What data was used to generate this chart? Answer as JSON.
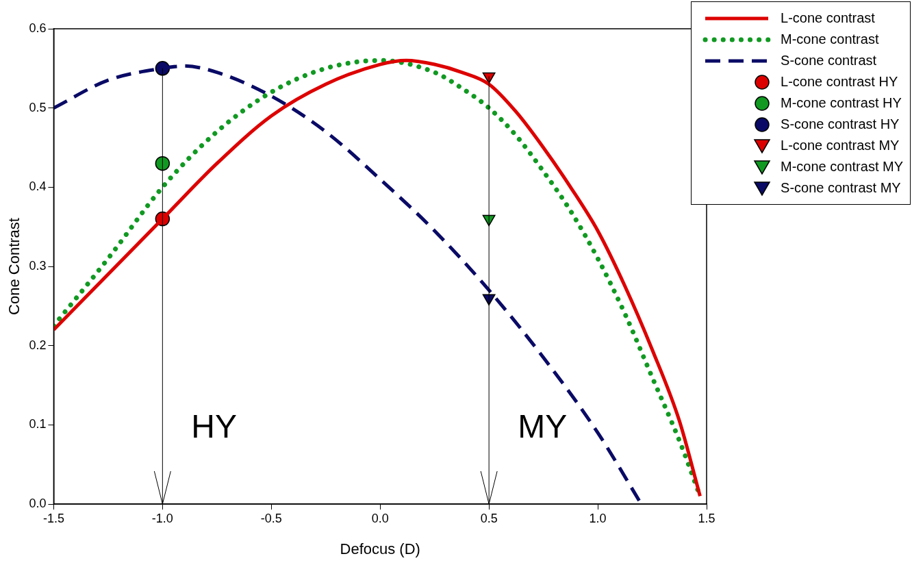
{
  "chart_data": {
    "type": "line",
    "xlabel": "Defocus (D)",
    "ylabel": "Cone Contrast",
    "xlim": [
      -1.5,
      1.5
    ],
    "xticks": [
      -1.5,
      {
        "value": -1,
        "label": "-1.0"
      },
      -0.5,
      {
        "value": 0,
        "label": "0.0"
      },
      0.5,
      {
        "value": 1,
        "label": "1.0"
      },
      1.5
    ],
    "ylim": [
      0,
      0.6
    ],
    "yticks": [
      {
        "value": 0,
        "label": "0.0"
      },
      0.1,
      0.2,
      0.3,
      0.4,
      0.5,
      0.6
    ],
    "grid": false,
    "legend": "top right",
    "ref_lines": [
      {
        "axis": "x",
        "value": -1,
        "color": "#000000"
      },
      {
        "axis": "x",
        "value": 0.5,
        "color": "#000000"
      }
    ],
    "annotations": [
      "HY",
      "MY"
    ],
    "series": [
      {
        "name": "L-cone contrast",
        "type": "line",
        "color": "#dd0000",
        "line_style": "solid",
        "marker": "none",
        "x": [
          -1.5,
          -1.25,
          -1,
          -0.75,
          -0.5,
          -0.25,
          0,
          0.12,
          0.25,
          0.375,
          0.5,
          0.625,
          0.75,
          0.875,
          1,
          1.125,
          1.25,
          1.375,
          1.47
        ],
        "values": [
          0.22,
          0.29,
          0.36,
          0.43,
          0.49,
          0.53,
          0.555,
          0.56,
          0.555,
          0.545,
          0.53,
          0.495,
          0.45,
          0.4,
          0.345,
          0.275,
          0.195,
          0.105,
          0.01
        ]
      },
      {
        "name": "M-cone contrast",
        "type": "line",
        "color": "#119922",
        "line_style": "dotted",
        "marker": "none",
        "x": [
          -1.5,
          -1.25,
          -1,
          -0.75,
          -0.5,
          -0.25,
          0,
          0.25,
          0.375,
          0.5,
          0.625,
          0.75,
          0.875,
          1,
          1.125,
          1.25,
          1.375,
          1.47
        ],
        "values": [
          0.225,
          0.31,
          0.4,
          0.47,
          0.52,
          0.55,
          0.56,
          0.545,
          0.525,
          0.5,
          0.465,
          0.42,
          0.37,
          0.31,
          0.24,
          0.16,
          0.08,
          0.01
        ]
      },
      {
        "name": "S-cone contrast",
        "type": "line",
        "color": "#0a0a66",
        "line_style": "dashed",
        "marker": "none",
        "x": [
          -1.5,
          -1.25,
          -1,
          -0.9,
          -0.75,
          -0.5,
          -0.25,
          0,
          0.25,
          0.5,
          0.75,
          1,
          1.2
        ],
        "values": [
          0.5,
          0.535,
          0.55,
          0.553,
          0.545,
          0.515,
          0.47,
          0.41,
          0.345,
          0.27,
          0.185,
          0.09,
          0
        ]
      },
      {
        "name": "L-cone contrast HY",
        "type": "scatter",
        "color": "#dd0000",
        "marker": "circle",
        "x": [
          -1
        ],
        "values": [
          0.36
        ]
      },
      {
        "name": "M-cone contrast HY",
        "type": "scatter",
        "color": "#119922",
        "marker": "circle",
        "x": [
          -1
        ],
        "values": [
          0.43
        ]
      },
      {
        "name": "S-cone contrast HY",
        "type": "scatter",
        "color": "#0a0a66",
        "marker": "circle",
        "x": [
          -1
        ],
        "values": [
          0.55
        ]
      },
      {
        "name": "L-cone contrast MY",
        "type": "scatter",
        "color": "#dd0000",
        "marker": "triangle",
        "x": [
          0.5
        ],
        "values": [
          0.54
        ]
      },
      {
        "name": "M-cone contrast MY",
        "type": "scatter",
        "color": "#119922",
        "marker": "triangle",
        "x": [
          0.5
        ],
        "values": [
          0.36
        ]
      },
      {
        "name": "S-cone contrast MY",
        "type": "scatter",
        "color": "#0a0a66",
        "marker": "triangle",
        "x": [
          0.5
        ],
        "values": [
          0.26
        ]
      }
    ]
  }
}
